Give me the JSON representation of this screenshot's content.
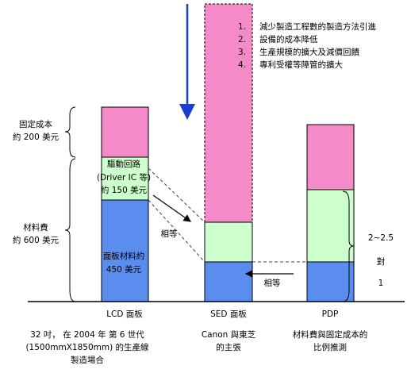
{
  "list": [
    "減少製造工程數的製造方法引進",
    "設備的成本降低",
    "生產規模的擴大及減價回饋",
    "專利受權等障管的擴大"
  ],
  "list_numbers": [
    "1.",
    "2.",
    "3.",
    "4."
  ],
  "left_labels": {
    "fixed_cost": [
      "固定成本",
      "約 200 美元"
    ],
    "material": [
      "材料費",
      "約 600 美元"
    ]
  },
  "lcd_labels": {
    "driver": [
      "驅動回路",
      "(Driver IC 等)",
      "約 150 美元"
    ],
    "panel": [
      "面板材料約",
      "450 美元"
    ]
  },
  "equal_labels": [
    "相等",
    "相等"
  ],
  "ratio_labels": [
    "2~2.5",
    "對",
    "1"
  ],
  "categories": [
    "LCD 面板",
    "SED 面板",
    "PDP"
  ],
  "notes": [
    [
      "32 吋， 在 2004 年 第 6 世代",
      "(1500mmX1850mm) 的生產線",
      "製造場合"
    ],
    [
      "Canon 與東芝",
      "的主張"
    ],
    [
      "材料費與固定成本的",
      "比例推測"
    ]
  ]
}
